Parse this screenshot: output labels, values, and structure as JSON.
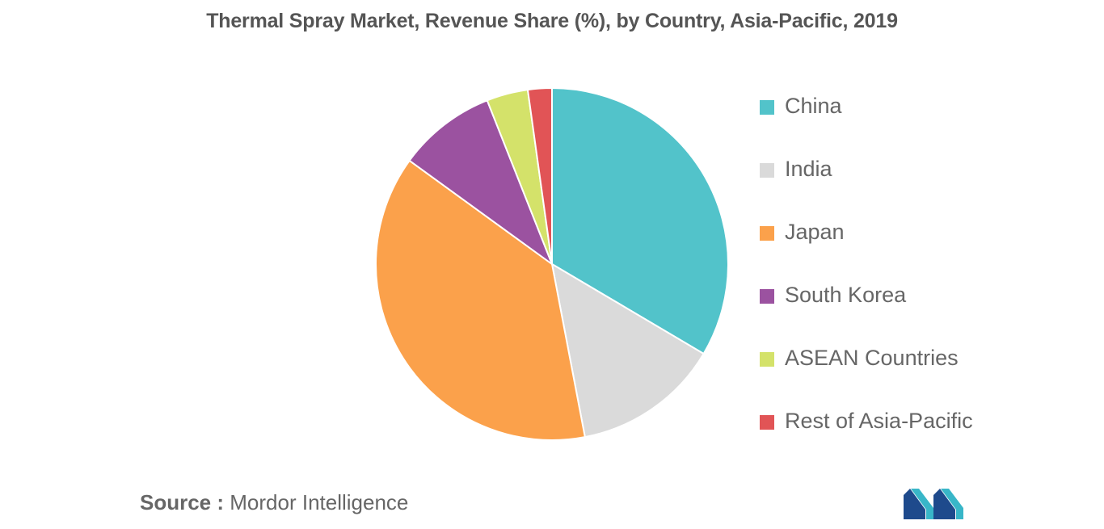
{
  "chart_data": {
    "type": "pie",
    "title": "Thermal Spray Market, Revenue Share (%), by Country, Asia-Pacific, 2019",
    "categories": [
      "China",
      "India",
      "Japan",
      "South Korea",
      "ASEAN Countries",
      "Rest of Asia-Pacific"
    ],
    "values": [
      33.5,
      13.5,
      38,
      9,
      3.8,
      2.2
    ],
    "colors": [
      "#52c3ca",
      "#dadada",
      "#fba14b",
      "#9b52a0",
      "#d4e26a",
      "#e15456"
    ],
    "legend_position": "right"
  },
  "source": {
    "label": "Source :",
    "text": "Mordor Intelligence"
  },
  "logo": {
    "icon": "mordor-intelligence-logo-icon",
    "colors": [
      "#1e4a8c",
      "#38b6c8"
    ]
  }
}
